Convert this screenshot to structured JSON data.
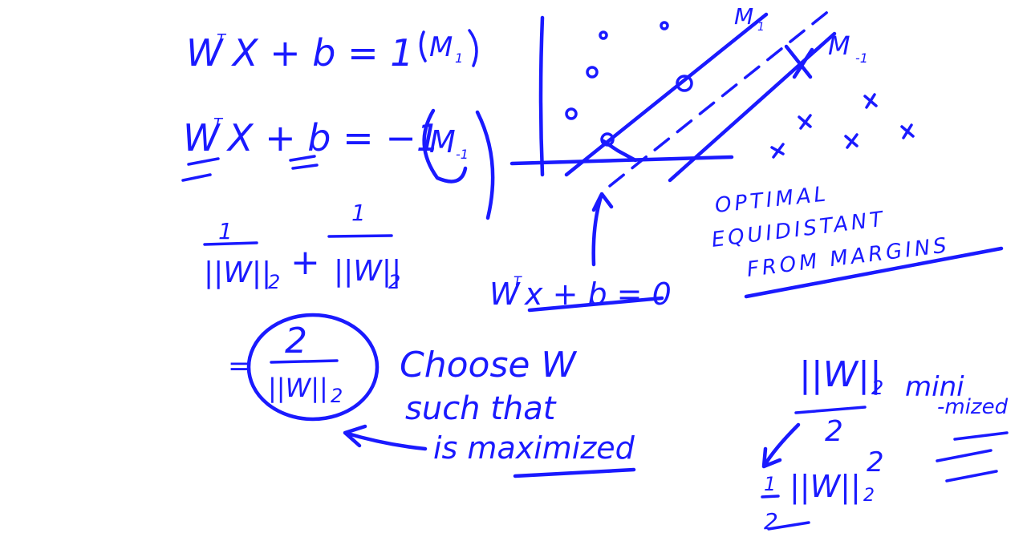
{
  "notes": {
    "eq1": {
      "lhs": "W",
      "sup": "T",
      "rest": "X + b  =  1",
      "tag": "M",
      "tag_sub": "1"
    },
    "eq2": {
      "lhs": "W",
      "sup": "T",
      "rest": "X + b  =  −1",
      "tag": "M",
      "tag_sub": "-1"
    },
    "frac1": {
      "num": "1",
      "den": "||W||",
      "sub": "2"
    },
    "plus": "+",
    "frac2": {
      "num": "1",
      "den": "||W||",
      "sub": "2"
    },
    "result": {
      "eq": "=",
      "num": "2",
      "den": "||W||",
      "sub": "2"
    },
    "choose": {
      "line1": "Choose W",
      "line2": "such that",
      "line3": "is maximized"
    },
    "boundary": {
      "lhs": "W",
      "sup": "T",
      "rest": "x + b = 0"
    },
    "margin_labels": {
      "m1": "M",
      "m1_sub": "1",
      "m_1": "M",
      "m_1_sub": "-1"
    },
    "optimal": {
      "line1": "OPTIMAL",
      "line2": "EQUIDISTANT",
      "line3": "FROM MARGINS"
    },
    "minimized": {
      "num": "||W||",
      "sub": "2",
      "den": "2",
      "word1": "mini",
      "word2": "-mized"
    },
    "half_sq": {
      "num": "1",
      "den": "2",
      "norm": "||W||",
      "sub": "2",
      "pow": "2"
    }
  },
  "colors": {
    "ink": "#1a1aff",
    "background": "#ffffff"
  },
  "plot_points": {
    "circles": "o",
    "crosses": "x"
  }
}
